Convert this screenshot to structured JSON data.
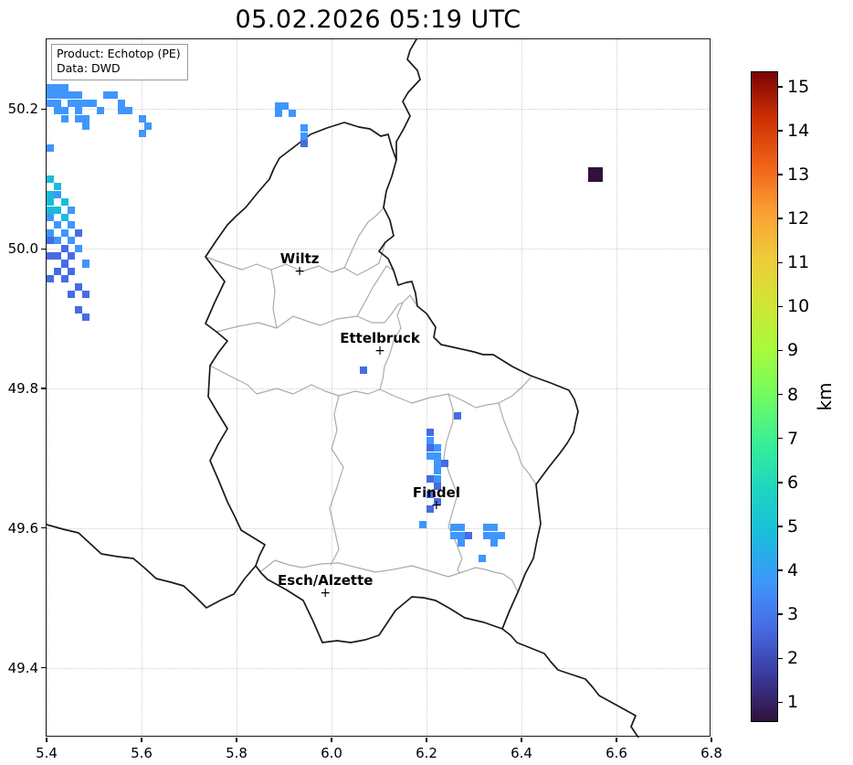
{
  "title": "05.02.2026 05:19 UTC",
  "legend": {
    "product": "Product: Echotop (PE)",
    "source": "Data: DWD"
  },
  "colorbar": {
    "label": "km",
    "ticks": [
      1,
      2,
      3,
      4,
      5,
      6,
      7,
      8,
      9,
      10,
      11,
      12,
      13,
      14,
      15
    ],
    "range": [
      1,
      15
    ],
    "colors": [
      "#30123b",
      "#3a3a9c",
      "#466be3",
      "#3f96fc",
      "#1abcdc",
      "#1dd6c0",
      "#38ef95",
      "#70fb61",
      "#a6fb3c",
      "#d0e535",
      "#efcb3a",
      "#fb9e32",
      "#f06218",
      "#cd3003",
      "#7a0403"
    ]
  },
  "chart_data": {
    "type": "heatmap",
    "title": "05.02.2026 05:19 UTC",
    "value_name": "echotop height",
    "value_unit": "km",
    "xlim": [
      5.4,
      6.8
    ],
    "ylim": [
      49.3,
      50.3
    ],
    "x_ticks": [
      5.4,
      5.6,
      5.8,
      6.0,
      6.2,
      6.4,
      6.6,
      6.8
    ],
    "y_ticks": [
      49.4,
      49.6,
      49.8,
      50.0,
      50.2
    ],
    "grid": "dotted",
    "legend_position": "upper left",
    "colorbar_position": "right",
    "cell_size_deg": [
      0.0155,
      0.0106
    ],
    "marker_symbol": "+",
    "cities": [
      {
        "name": "Wiltz",
        "lon": 5.933,
        "lat": 49.968
      },
      {
        "name": "Ettelbruck",
        "lon": 6.102,
        "lat": 49.854
      },
      {
        "name": "Findel",
        "lon": 6.221,
        "lat": 49.632
      },
      {
        "name": "Esch/Alzette",
        "lon": 5.987,
        "lat": 49.507
      }
    ],
    "points": [
      [
        5.4,
        50.236,
        4
      ],
      [
        5.415,
        50.236,
        4
      ],
      [
        5.43,
        50.236,
        4
      ],
      [
        5.4,
        50.225,
        4
      ],
      [
        5.415,
        50.225,
        4
      ],
      [
        5.43,
        50.225,
        4
      ],
      [
        5.445,
        50.225,
        4
      ],
      [
        5.46,
        50.225,
        4
      ],
      [
        5.52,
        50.225,
        4
      ],
      [
        5.535,
        50.225,
        4
      ],
      [
        5.4,
        50.214,
        4
      ],
      [
        5.415,
        50.214,
        4
      ],
      [
        5.445,
        50.214,
        4
      ],
      [
        5.46,
        50.214,
        4
      ],
      [
        5.475,
        50.214,
        4
      ],
      [
        5.49,
        50.214,
        4
      ],
      [
        5.55,
        50.214,
        4
      ],
      [
        5.415,
        50.203,
        4
      ],
      [
        5.43,
        50.203,
        4
      ],
      [
        5.46,
        50.203,
        4
      ],
      [
        5.505,
        50.203,
        4
      ],
      [
        5.55,
        50.203,
        4
      ],
      [
        5.565,
        50.203,
        4
      ],
      [
        5.43,
        50.192,
        4
      ],
      [
        5.46,
        50.192,
        4
      ],
      [
        5.475,
        50.192,
        4
      ],
      [
        5.595,
        50.192,
        4
      ],
      [
        5.475,
        50.181,
        4
      ],
      [
        5.605,
        50.181,
        4
      ],
      [
        5.595,
        50.17,
        4
      ],
      [
        5.88,
        50.21,
        4
      ],
      [
        5.895,
        50.21,
        4
      ],
      [
        5.88,
        50.199,
        4
      ],
      [
        5.91,
        50.199,
        4
      ],
      [
        5.935,
        50.178,
        4
      ],
      [
        5.935,
        50.167,
        4
      ],
      [
        5.935,
        50.156,
        3
      ],
      [
        5.4,
        50.149,
        4
      ],
      [
        5.4,
        50.105,
        5
      ],
      [
        5.415,
        50.094,
        5
      ],
      [
        5.4,
        50.083,
        5
      ],
      [
        5.415,
        50.083,
        4
      ],
      [
        5.4,
        50.072,
        5
      ],
      [
        5.43,
        50.072,
        5
      ],
      [
        5.4,
        50.061,
        5
      ],
      [
        5.415,
        50.061,
        5
      ],
      [
        5.445,
        50.061,
        4
      ],
      [
        5.4,
        50.05,
        4
      ],
      [
        5.43,
        50.05,
        5
      ],
      [
        5.415,
        50.039,
        4
      ],
      [
        5.445,
        50.039,
        4
      ],
      [
        5.4,
        50.028,
        4
      ],
      [
        5.43,
        50.028,
        4
      ],
      [
        5.46,
        50.028,
        3
      ],
      [
        5.4,
        50.017,
        3
      ],
      [
        5.415,
        50.017,
        4
      ],
      [
        5.445,
        50.017,
        4
      ],
      [
        5.43,
        50.006,
        3
      ],
      [
        5.46,
        50.006,
        4
      ],
      [
        5.4,
        49.995,
        3
      ],
      [
        5.415,
        49.995,
        3
      ],
      [
        5.445,
        49.995,
        3
      ],
      [
        5.43,
        49.984,
        3
      ],
      [
        5.475,
        49.984,
        4
      ],
      [
        5.415,
        49.973,
        3
      ],
      [
        5.445,
        49.973,
        3
      ],
      [
        5.4,
        49.962,
        3
      ],
      [
        5.43,
        49.962,
        3
      ],
      [
        5.46,
        49.951,
        3
      ],
      [
        5.445,
        49.94,
        3
      ],
      [
        5.475,
        49.94,
        3
      ],
      [
        5.46,
        49.918,
        3
      ],
      [
        5.475,
        49.907,
        3
      ],
      [
        6.06,
        49.831,
        3
      ],
      [
        6.258,
        49.766,
        3
      ],
      [
        6.2,
        49.742,
        3
      ],
      [
        6.2,
        49.731,
        4
      ],
      [
        6.2,
        49.72,
        3
      ],
      [
        6.215,
        49.72,
        4
      ],
      [
        6.2,
        49.709,
        4
      ],
      [
        6.215,
        49.709,
        4
      ],
      [
        6.215,
        49.698,
        4
      ],
      [
        6.23,
        49.698,
        3
      ],
      [
        6.215,
        49.687,
        4
      ],
      [
        6.2,
        49.676,
        3
      ],
      [
        6.215,
        49.676,
        4
      ],
      [
        6.215,
        49.665,
        3
      ],
      [
        6.2,
        49.654,
        3
      ],
      [
        6.215,
        49.643,
        3
      ],
      [
        6.2,
        49.632,
        3
      ],
      [
        6.185,
        49.61,
        4
      ],
      [
        6.25,
        49.606,
        4
      ],
      [
        6.265,
        49.606,
        4
      ],
      [
        6.32,
        49.606,
        4
      ],
      [
        6.335,
        49.606,
        4
      ],
      [
        6.25,
        49.595,
        4
      ],
      [
        6.265,
        49.595,
        4
      ],
      [
        6.28,
        49.595,
        3
      ],
      [
        6.32,
        49.595,
        4
      ],
      [
        6.335,
        49.595,
        4
      ],
      [
        6.35,
        49.595,
        4
      ],
      [
        6.265,
        49.584,
        4
      ],
      [
        6.335,
        49.584,
        4
      ],
      [
        6.31,
        49.562,
        4
      ],
      [
        6.54,
        50.117,
        1
      ],
      [
        6.555,
        50.117,
        1
      ],
      [
        6.54,
        50.106,
        1
      ],
      [
        6.555,
        50.106,
        1
      ]
    ]
  }
}
